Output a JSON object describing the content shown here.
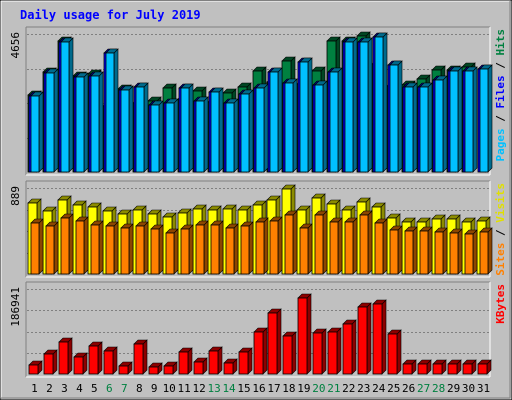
{
  "chart_data": {
    "type": "bar",
    "title": "Daily usage for July 2019",
    "categories": [
      "1",
      "2",
      "3",
      "4",
      "5",
      "6",
      "7",
      "8",
      "9",
      "10",
      "11",
      "12",
      "13",
      "14",
      "15",
      "16",
      "17",
      "18",
      "19",
      "20",
      "21",
      "22",
      "23",
      "24",
      "25",
      "26",
      "27",
      "28",
      "29",
      "30",
      "31"
    ],
    "weekend_days": [
      "6",
      "7",
      "13",
      "14",
      "20",
      "21",
      "27",
      "28"
    ],
    "panels": [
      {
        "id": "hits_files_pages",
        "max_label": "4656",
        "ylim": [
          0,
          4656
        ],
        "legend": [
          {
            "text": "Pages",
            "color": "#00c0ff"
          },
          {
            "text": "Files",
            "color": "#0000ff"
          },
          {
            "text": "Hits",
            "color": "#008040"
          }
        ],
        "series": [
          {
            "name": "Hits",
            "color": "#008040",
            "values": [
              2600,
              3380,
              4420,
              3250,
              3290,
              2230,
              2800,
              2320,
              2390,
              2850,
              2460,
              2720,
              2370,
              2650,
              2880,
              3400,
              3050,
              3740,
              2960,
              3420,
              4420,
              4420,
              4580,
              3650,
              2900,
              2920,
              3150,
              3450,
              3450,
              3530,
              0
            ]
          },
          {
            "name": "Files",
            "color": "#0000ff",
            "values": [
              2550,
              3330,
              4370,
              3200,
              3250,
              4020,
              2760,
              2880,
              2270,
              2340,
              2820,
              2400,
              2690,
              2340,
              2620,
              2850,
              3380,
              3000,
              3700,
              2930,
              3390,
              4370,
              4370,
              4550,
              3610,
              2870,
              2880,
              3110,
              3410,
              3410,
              3490
            ]
          },
          {
            "name": "Pages",
            "color": "#00c0ff",
            "values": [
              2550,
              3330,
              4370,
              3200,
              3250,
              4020,
              2760,
              2880,
              2270,
              2340,
              2820,
              2400,
              2690,
              2340,
              2620,
              2850,
              3380,
              3000,
              3700,
              2930,
              3390,
              4370,
              4370,
              4550,
              3610,
              2870,
              2880,
              3110,
              3410,
              3410,
              3490
            ]
          }
        ]
      },
      {
        "id": "visits_sites",
        "max_label": "889",
        "ylim": [
          0,
          889
        ],
        "legend": [
          {
            "text": "Sites",
            "color": "#ff8000"
          },
          {
            "text": "Visits",
            "color": "#e0e000"
          }
        ],
        "series": [
          {
            "name": "Visits",
            "color": "#ffff00",
            "values": [
              730,
              650,
              760,
              710,
              690,
              650,
              620,
              660,
              620,
              590,
              630,
              670,
              660,
              670,
              660,
              710,
              760,
              880,
              660,
              790,
              720,
              660,
              740,
              690,
              580,
              540,
              540,
              570,
              570,
              540,
              550
            ]
          },
          {
            "name": "Sites",
            "color": "#ff8000",
            "values": [
              530,
              500,
              580,
              550,
              510,
              500,
              480,
              500,
              470,
              420,
              470,
              510,
              510,
              480,
              500,
              540,
              550,
              610,
              480,
              610,
              540,
              540,
              610,
              530,
              450,
              440,
              440,
              430,
              420,
              410,
              430
            ]
          }
        ]
      },
      {
        "id": "kbytes",
        "max_label": "186941",
        "ylim": [
          0,
          186941
        ],
        "legend": [
          {
            "text": "KBytes",
            "color": "#ff0000"
          }
        ],
        "series": [
          {
            "name": "KBytes",
            "color": "#ff0000",
            "values": [
              20000,
              43000,
              70000,
              37000,
              62000,
              50000,
              18000,
              67000,
              16000,
              17000,
              48000,
              26000,
              51000,
              25000,
              48000,
              92000,
              135000,
              83000,
              168000,
              90000,
              92000,
              109000,
              148000,
              155000,
              87000,
              21000,
              22000,
              22000,
              22000,
              22000,
              21000
            ]
          }
        ]
      }
    ]
  }
}
